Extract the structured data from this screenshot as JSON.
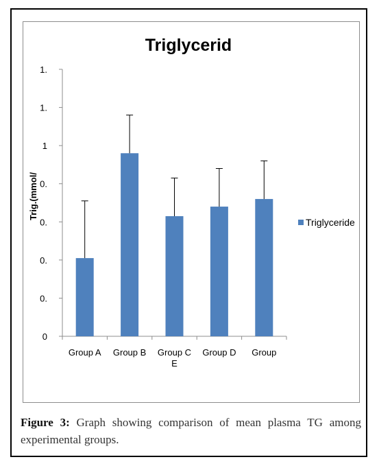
{
  "chart_data": {
    "type": "bar",
    "title": "Triglycerid",
    "ylabel": "Trig.(mmol/",
    "xlabel": "",
    "categories": [
      "Group A",
      "Group B",
      "Group C",
      "Group D",
      "Group"
    ],
    "category_second_lines": [
      "",
      "",
      "E",
      "",
      ""
    ],
    "series": [
      {
        "name": "Triglyceride",
        "values": [
          0.41,
          0.96,
          0.63,
          0.68,
          0.72
        ],
        "error": [
          0.3,
          0.2,
          0.2,
          0.2,
          0.2
        ]
      }
    ],
    "y_tick_labels": [
      "0",
      "0.",
      "0.",
      "0.",
      "0.",
      "1",
      "1.",
      "1."
    ],
    "ylim": [
      0,
      1.4
    ],
    "grid": false,
    "legend_position": "right",
    "colors": {
      "bar": "#4f81bd",
      "axis": "#8c8c8c",
      "error": "#000000"
    }
  },
  "caption": {
    "label": "Figure 3:",
    "text": " Graph showing comparison of mean plasma TG among experimental groups."
  }
}
